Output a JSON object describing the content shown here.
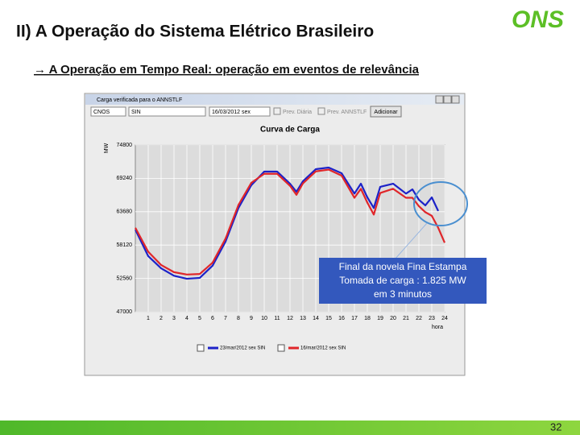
{
  "slide": {
    "title": "II) A Operação do Sistema Elétrico Brasileiro",
    "subtitle": "→ A Operação em Tempo Real: operação em eventos de relevância",
    "logo": "ONS",
    "page_number": 32,
    "window": {
      "title": "Carga verificada para o ANNSTLF",
      "region": "CNOS",
      "system": "SIN",
      "date": "16/03/2012 sex",
      "options": [
        "Prev. Diária",
        "Prev. ANNSTLF"
      ],
      "button": "Adicionar"
    },
    "annotation": [
      "Final da novela Fina Estampa",
      "Tomada de carga : 1.825 MW",
      "em 3 minutos"
    ]
  },
  "chart_data": {
    "type": "line",
    "title": "Curva de Carga",
    "y_label": "MW",
    "x_label": "hora",
    "x": [
      0,
      1,
      2,
      3,
      4,
      5,
      6,
      7,
      8,
      9,
      10,
      11,
      12,
      12.5,
      13,
      14,
      15,
      16,
      17,
      17.5,
      18,
      18.5,
      19,
      20,
      21,
      21.5,
      22,
      22.5,
      23,
      23.5,
      24
    ],
    "series": [
      {
        "name": "23/mar/2012 sex SIN",
        "color": "#1c22c8",
        "values": [
          60700,
          56270,
          54250,
          53000,
          52500,
          52650,
          54700,
          58700,
          64300,
          68100,
          70370,
          70370,
          68350,
          67000,
          68750,
          70770,
          71040,
          70100,
          66700,
          68350,
          66070,
          64300,
          67830,
          68350,
          66700,
          67400,
          65670,
          64730,
          66070,
          63800,
          null
        ]
      },
      {
        "name": "16/mar/2012 sex SIN",
        "color": "#e0262a",
        "values": [
          61000,
          57000,
          54800,
          53600,
          53200,
          53300,
          55200,
          59200,
          64800,
          68500,
          70000,
          70000,
          68000,
          66500,
          68400,
          70400,
          70700,
          69700,
          66000,
          67500,
          65200,
          63200,
          66800,
          67500,
          66000,
          66000,
          64600,
          63600,
          63000,
          61000,
          58500
        ]
      }
    ],
    "xlim": [
      0,
      24
    ],
    "xticks": [
      1,
      2,
      3,
      4,
      5,
      6,
      7,
      8,
      9,
      10,
      11,
      12,
      13,
      14,
      15,
      16,
      17,
      18,
      19,
      20,
      21,
      22,
      23,
      24
    ],
    "ylim": [
      47000,
      74800
    ],
    "yticks": [
      47000,
      52560,
      58120,
      63680,
      69240,
      74800
    ],
    "grid": true,
    "legend": "bottom"
  }
}
